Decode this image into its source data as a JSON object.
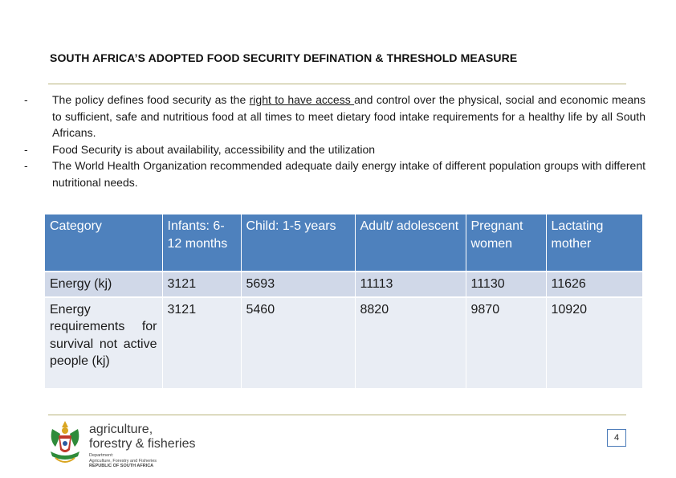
{
  "title": "SOUTH AFRICA’S ADOPTED FOOD SECURITY DEFINATION & THRESHOLD MEASURE",
  "bullets": [
    {
      "marker": "-",
      "text_before": "The policy defines food security as the ",
      "underlined": "right to have access ",
      "text_after": "and control over the physical, social and economic means to sufficient, safe and nutritious food at all times to meet dietary food intake requirements for a healthy life by all South Africans."
    },
    {
      "marker": "-",
      "text": "Food Security is about availability, accessibility and the utilization"
    },
    {
      "marker": "-",
      "text": "The World Health Organization recommended adequate daily energy intake of different population groups with different nutritional needs."
    }
  ],
  "table": {
    "headers": [
      "Category",
      "Infants: 6-12 months",
      "Child: 1-5 years",
      "Adult/ adolescent",
      "Pregnant women",
      "Lactating mother"
    ],
    "rows": [
      [
        "Energy (kj)",
        "3121",
        "5693",
        "11113",
        "11130",
        "11626"
      ],
      [
        "Energy requirements for survival not active people (kj)",
        "3121",
        "5460",
        "8820",
        "9870",
        "10920"
      ]
    ]
  },
  "logo": {
    "line1": "agriculture,",
    "line2": "forestry & fisheries",
    "sub1": "Department:",
    "sub2": "Agriculture, Forestry and Fisheries",
    "sub3": "REPUBLIC OF SOUTH AFRICA",
    "colors": {
      "green": "#2e8b3a",
      "gold": "#d9a521",
      "red": "#c0392b",
      "blue": "#2c5aa0"
    }
  },
  "page_number": "4"
}
